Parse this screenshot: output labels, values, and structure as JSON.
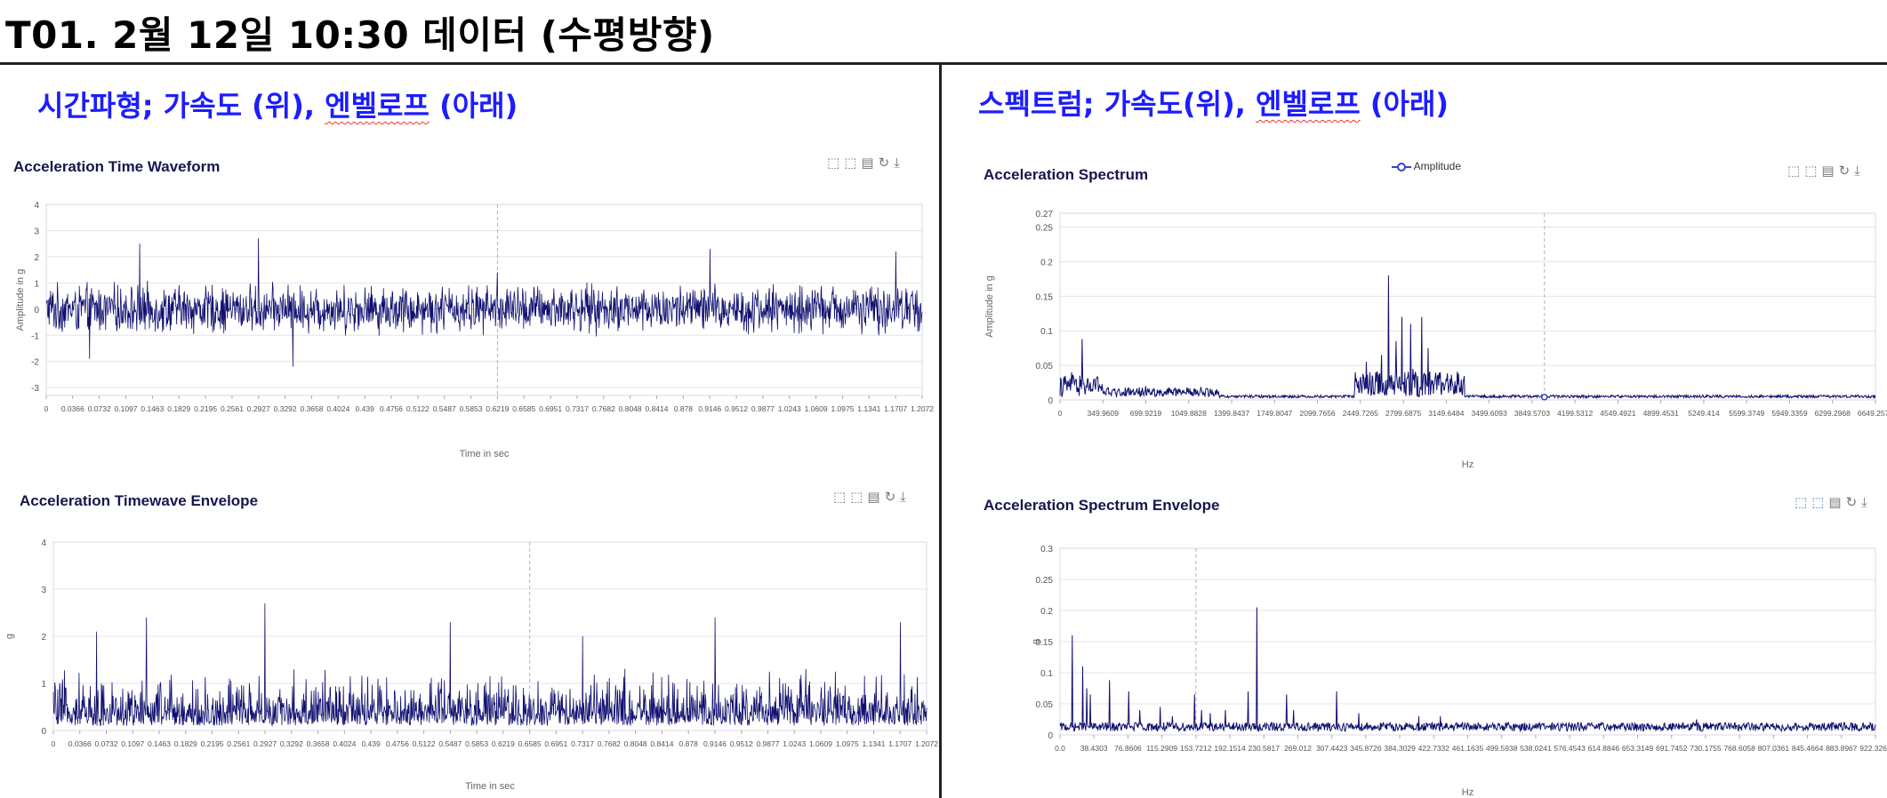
{
  "page": {
    "title": "T01. 2월 12일 10:30 데이터 (수평방향)",
    "left_heading": {
      "prefix": "시간파형; 가속도 (위), ",
      "underlined": "엔벨로프",
      "suffix": " (아래)"
    },
    "right_heading": {
      "prefix": "스펙트럼; 가속도(위), ",
      "underlined": "엔벨로프",
      "suffix": " (아래)"
    },
    "toolbox_icons": [
      "zoom-icon",
      "zoom-reset-icon",
      "data-view-icon",
      "restore-icon",
      "save-icon"
    ]
  },
  "chart_data": [
    {
      "id": "accel_time",
      "type": "line",
      "title": "Acceleration Time Waveform",
      "xlabel": "Time in sec",
      "ylabel": "Amplitude in g",
      "ylim": [
        -3.3,
        4
      ],
      "yticks": [
        -3,
        -2,
        -1,
        0,
        1,
        2,
        3,
        4
      ],
      "xticks": [
        "0",
        "0.0366",
        "0.0732",
        "0.1097",
        "0.1463",
        "0.1829",
        "0.2195",
        "0.2561",
        "0.2927",
        "0.3292",
        "0.3658",
        "0.4024",
        "0.439",
        "0.4756",
        "0.5122",
        "0.5487",
        "0.5853",
        "0.6219",
        "0.6585",
        "0.6951",
        "0.7317",
        "0.7682",
        "0.8048",
        "0.8414",
        "0.878",
        "0.9146",
        "0.9512",
        "0.9877",
        "1.0243",
        "1.0609",
        "1.0975",
        "1.1341",
        "1.1707",
        "1.2072"
      ],
      "xlim": [
        0,
        1.2072
      ],
      "series": [
        {
          "style": "vibration",
          "amplitude": 0.9,
          "peaks": [
            [
              0.129,
              2.5
            ],
            [
              0.2927,
              2.7
            ],
            [
              0.3401,
              -2.2
            ],
            [
              0.9146,
              2.3
            ],
            [
              1.1707,
              2.2
            ],
            [
              0.06,
              -1.9
            ],
            [
              0.6219,
              1.4
            ]
          ]
        }
      ],
      "cursor_x": 0.6219,
      "legend": ""
    },
    {
      "id": "accel_spectrum",
      "type": "line",
      "title": "Acceleration Spectrum",
      "xlabel": "Hz",
      "ylabel": "Amplitude in g",
      "ylim": [
        0,
        0.27
      ],
      "yticks": [
        0,
        0.05,
        0.1,
        0.15,
        0.2,
        0.25,
        0.27
      ],
      "xticks": [
        "0",
        "349.9609",
        "699.9219",
        "1049.8828",
        "1399.8437",
        "1749.8047",
        "2099.7656",
        "2449.7265",
        "2799.6875",
        "3149.6484",
        "3499.6093",
        "3849.5703",
        "4199.5312",
        "4549.4921",
        "4899.4531",
        "5249.414",
        "5599.3749",
        "5949.3359",
        "6299.2968",
        "6649.2577"
      ],
      "xlim": [
        0,
        6649.2577
      ],
      "series": [
        {
          "name": "Amplitude",
          "peaks": [
            [
              180,
              0.088
            ],
            [
              95,
              0.04
            ],
            [
              280,
              0.03
            ],
            [
              700,
              0.02
            ],
            [
              900,
              0.015
            ],
            [
              2500,
              0.055
            ],
            [
              2620,
              0.065
            ],
            [
              2680,
              0.18
            ],
            [
              2740,
              0.085
            ],
            [
              2790,
              0.12
            ],
            [
              2860,
              0.11
            ],
            [
              2950,
              0.12
            ],
            [
              3000,
              0.075
            ],
            [
              2880,
              0.045
            ],
            [
              3100,
              0.04
            ]
          ]
        }
      ],
      "cursor_x": 3950,
      "legend": "Amplitude"
    },
    {
      "id": "accel_envelope_time",
      "type": "line",
      "title": "Acceleration Timewave Envelope",
      "xlabel": "Time in sec",
      "ylabel": "g",
      "ylim": [
        0,
        4
      ],
      "yticks": [
        0,
        1,
        2,
        3,
        4
      ],
      "xticks": [
        "0",
        "0.0366",
        "0.0732",
        "0.1097",
        "0.1463",
        "0.1829",
        "0.2195",
        "0.2561",
        "0.2927",
        "0.3292",
        "0.3658",
        "0.4024",
        "0.439",
        "0.4756",
        "0.5122",
        "0.5487",
        "0.5853",
        "0.6219",
        "0.6585",
        "0.6951",
        "0.7317",
        "0.7682",
        "0.8048",
        "0.8414",
        "0.878",
        "0.9146",
        "0.9512",
        "0.9877",
        "1.0243",
        "1.0609",
        "1.0975",
        "1.1341",
        "1.1707",
        "1.2072"
      ],
      "xlim": [
        0,
        1.2072
      ],
      "series": [
        {
          "style": "envelope",
          "amplitude": 0.9,
          "peaks": [
            [
              0.2927,
              2.7
            ],
            [
              0.129,
              2.4
            ],
            [
              0.5487,
              2.3
            ],
            [
              0.9146,
              2.4
            ],
            [
              1.1707,
              2.3
            ],
            [
              0.06,
              2.1
            ],
            [
              0.7317,
              2.0
            ]
          ]
        }
      ],
      "cursor_x": 0.6585,
      "legend": ""
    },
    {
      "id": "accel_spectrum_envelope",
      "type": "line",
      "title": "Acceleration Spectrum Envelope",
      "xlabel": "Hz",
      "ylabel": "g",
      "ylim": [
        0,
        0.3
      ],
      "yticks": [
        0,
        0.05,
        0.1,
        0.15,
        0.2,
        0.25,
        0.3
      ],
      "xticks": [
        "0.0",
        "38.4303",
        "76.8606",
        "115.2909",
        "153.7212",
        "192.1514",
        "230.5817",
        "269.012",
        "307.4423",
        "345.8726",
        "384.3029",
        "422.7332",
        "461.1635",
        "499.5938",
        "538.0241",
        "576.4543",
        "614.8846",
        "653.3149",
        "691.7452",
        "730.1755",
        "768.6058",
        "807.0361",
        "845.4664",
        "883.8967",
        "922.3269"
      ],
      "xlim": [
        0,
        922.3269
      ],
      "series": [
        {
          "peaks": [
            [
              14,
              0.16
            ],
            [
              26,
              0.11
            ],
            [
              30,
              0.075
            ],
            [
              34,
              0.065
            ],
            [
              56,
              0.088
            ],
            [
              78,
              0.07
            ],
            [
              90,
              0.04
            ],
            [
              113,
              0.045
            ],
            [
              127,
              0.03
            ],
            [
              152,
              0.065
            ],
            [
              160,
              0.04
            ],
            [
              170,
              0.035
            ],
            [
              187,
              0.04
            ],
            [
              213,
              0.07
            ],
            [
              223,
              0.205
            ],
            [
              256,
              0.065
            ],
            [
              264,
              0.04
            ],
            [
              313,
              0.07
            ],
            [
              338,
              0.035
            ],
            [
              347,
              0.02
            ],
            [
              406,
              0.03
            ],
            [
              430,
              0.03
            ],
            [
              497,
              0.018
            ],
            [
              586,
              0.02
            ],
            [
              636,
              0.013
            ],
            [
              708,
              0.015
            ],
            [
              720,
              0.025
            ],
            [
              780,
              0.01
            ],
            [
              836,
              0.012
            ]
          ]
        }
      ],
      "cursor_x": 153.7212,
      "legend": ""
    }
  ]
}
